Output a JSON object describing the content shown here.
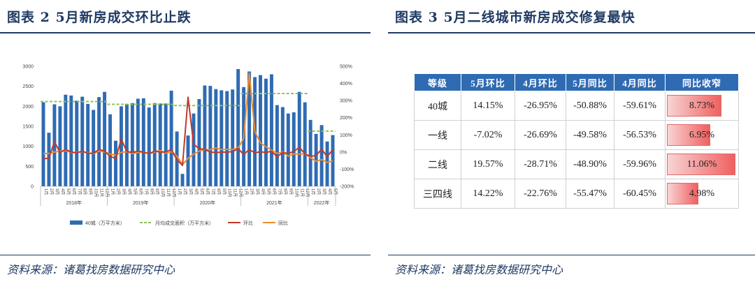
{
  "left": {
    "title": "图表 2   5月新房成交环比止跌",
    "source": "资料来源：诸葛找房数据研究中心"
  },
  "right": {
    "title": "图表 3   5月二线城市新房成交修复最快",
    "source": "资料来源：诸葛找房数据研究中心",
    "table": {
      "headers": [
        "等级",
        "5月环比",
        "4月环比",
        "5月同比",
        "4月同比",
        "同比收窄"
      ],
      "rows": [
        {
          "tier": "40城",
          "may_mom": "14.15%",
          "apr_mom": "-26.95%",
          "may_yoy": "-50.88%",
          "apr_yoy": "-59.61%",
          "narrow": "8.73%",
          "narrow_value": 8.73
        },
        {
          "tier": "一线",
          "may_mom": "-7.02%",
          "apr_mom": "-26.69%",
          "may_yoy": "-49.58%",
          "apr_yoy": "-56.53%",
          "narrow": "6.95%",
          "narrow_value": 6.95
        },
        {
          "tier": "二线",
          "may_mom": "19.57%",
          "apr_mom": "-28.71%",
          "may_yoy": "-48.90%",
          "apr_yoy": "-59.96%",
          "narrow": "11.06%",
          "narrow_value": 11.06
        },
        {
          "tier": "三四线",
          "may_mom": "14.22%",
          "apr_mom": "-22.76%",
          "may_yoy": "-55.47%",
          "apr_yoy": "-60.45%",
          "narrow": "4.98%",
          "narrow_value": 4.98
        }
      ]
    }
  },
  "colors": {
    "navy": "#1f3a63",
    "bar": "#2f6bb3",
    "avg": "#8fc45a",
    "mom": "#c0392b",
    "yoy": "#ed8b30",
    "header_bg": "#2f6bb3"
  },
  "chart_data": {
    "type": "bar",
    "months": [
      "1月",
      "2月",
      "3月",
      "4月",
      "5月",
      "6月",
      "7月",
      "8月",
      "9月",
      "10月",
      "11月",
      "12月",
      "1月",
      "2月",
      "3月",
      "4月",
      "5月",
      "6月",
      "7月",
      "8月",
      "9月",
      "10月",
      "11月",
      "12月",
      "1月",
      "2月",
      "3月",
      "4月",
      "5月",
      "6月",
      "7月",
      "8月",
      "9月",
      "10月",
      "11月",
      "12月",
      "1月",
      "2月",
      "3月",
      "4月",
      "5月",
      "6月",
      "7月",
      "8月",
      "9月",
      "10月",
      "11月",
      "12月",
      "1月",
      "2月",
      "3月",
      "4月",
      "5月"
    ],
    "years": [
      {
        "label": "2018年",
        "count": 12
      },
      {
        "label": "2019年",
        "count": 12
      },
      {
        "label": "2020年",
        "count": 12
      },
      {
        "label": "2021年",
        "count": 12
      },
      {
        "label": "2022年",
        "count": 5
      }
    ],
    "series": [
      {
        "name": "40城（万平方米）",
        "type": "bar",
        "axis": "left",
        "values": [
          2100,
          1340,
          2050,
          2000,
          2290,
          2270,
          2140,
          2240,
          2060,
          1910,
          2230,
          2360,
          1800,
          1140,
          2000,
          2060,
          2080,
          2190,
          2200,
          1970,
          2080,
          2070,
          2070,
          2390,
          1370,
          310,
          1270,
          1820,
          2180,
          2520,
          2510,
          2430,
          2400,
          2380,
          2420,
          2930,
          2480,
          2870,
          2730,
          2780,
          2690,
          2800,
          2030,
          1980,
          1820,
          1850,
          2360,
          2100,
          1660,
          1310,
          1530,
          1120,
          1280
        ]
      },
      {
        "name": "月均成交面积（万平方米）",
        "type": "step",
        "axis": "left",
        "values": [
          2120,
          2120,
          2120,
          2120,
          2120,
          2120,
          2120,
          2120,
          2120,
          2120,
          2120,
          2120,
          2050,
          2050,
          2050,
          2050,
          2050,
          2050,
          2050,
          2050,
          2050,
          2050,
          2050,
          2050,
          2020,
          2020,
          2020,
          2020,
          2020,
          2020,
          2020,
          2020,
          2020,
          2020,
          2020,
          2020,
          2320,
          2320,
          2320,
          2320,
          2320,
          2320,
          2320,
          2320,
          2320,
          2320,
          2320,
          2320,
          1380,
          1380,
          1380,
          1380,
          1380
        ]
      },
      {
        "name": "环比",
        "type": "line",
        "axis": "right",
        "values": [
          -40,
          -35,
          60,
          -3,
          15,
          0,
          -5,
          5,
          -8,
          -7,
          15,
          5,
          -25,
          -38,
          75,
          3,
          -2,
          5,
          0,
          -10,
          5,
          0,
          0,
          15,
          -45,
          -78,
          320,
          45,
          20,
          15,
          0,
          -3,
          -1,
          0,
          2,
          20,
          -15,
          15,
          -5,
          2,
          -3,
          5,
          -28,
          -3,
          -8,
          3,
          28,
          -11,
          -25,
          -21,
          17,
          -27,
          14
        ]
      },
      {
        "name": "同比",
        "type": "line",
        "axis": "right",
        "values": [
          -10,
          -8,
          0,
          5,
          8,
          -3,
          -2,
          3,
          -5,
          -10,
          6,
          0,
          -12,
          -18,
          -2,
          2,
          -9,
          -3,
          1,
          -10,
          0,
          10,
          -7,
          1,
          -24,
          -73,
          -37,
          -12,
          5,
          15,
          14,
          23,
          15,
          15,
          16,
          23,
          80,
          460,
          120,
          53,
          30,
          11,
          -8,
          1,
          -24,
          -11,
          -12,
          -11,
          -33,
          -54,
          -44,
          -60,
          -51
        ]
      }
    ],
    "left_axis": {
      "min": 0,
      "max": 3000,
      "ticks": [
        "0",
        "500",
        "1000",
        "1500",
        "2000",
        "2500",
        "3000"
      ]
    },
    "right_axis": {
      "min": -200,
      "max": 500,
      "ticks": [
        "-200%",
        "-100%",
        "0%",
        "100%",
        "200%",
        "300%",
        "400%",
        "500%"
      ]
    },
    "legend": [
      "40城（万平方米）",
      "月均成交面积（万平方米）",
      "环比",
      "同比"
    ],
    "legend_position": "bottom"
  }
}
